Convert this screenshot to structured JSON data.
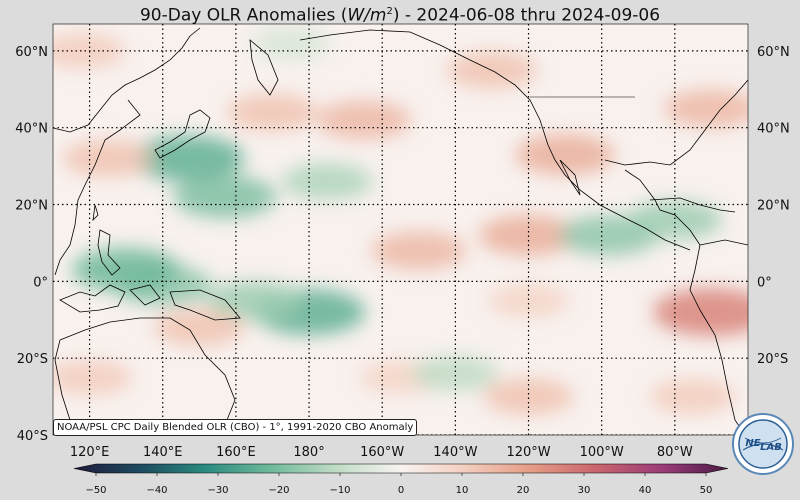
{
  "title": {
    "prefix": "90-Day OLR Anomalies (",
    "unit_main": "W/m",
    "unit_sup": "2",
    "suffix": ") - 2024-06-08 thru 2024-09-06"
  },
  "credit": "NOAA/PSL CPC Daily Blended OLR (CBO) - 1°, 1991-2020 CBO Anomaly",
  "logo_text": {
    "left": "NE",
    "right": "LAB"
  },
  "map": {
    "projection": "equirectangular",
    "lon_range": [
      110,
      300
    ],
    "lat_range": [
      -40,
      67
    ],
    "grid": "dotted",
    "lat_ticks": [
      {
        "lat": 60,
        "label": "60°N"
      },
      {
        "lat": 40,
        "label": "40°N"
      },
      {
        "lat": 20,
        "label": "20°N"
      },
      {
        "lat": 0,
        "label": "0°"
      },
      {
        "lat": -20,
        "label": "20°S"
      },
      {
        "lat": -40,
        "label": "40°S"
      }
    ],
    "lon_ticks": [
      {
        "lon": 120,
        "label": "120°E"
      },
      {
        "lon": 140,
        "label": "140°E"
      },
      {
        "lon": 160,
        "label": "160°E"
      },
      {
        "lon": 180,
        "label": "180°"
      },
      {
        "lon": 200,
        "label": "160°W"
      },
      {
        "lon": 220,
        "label": "140°W"
      },
      {
        "lon": 240,
        "label": "120°W"
      },
      {
        "lon": 260,
        "label": "100°W"
      },
      {
        "lon": 280,
        "label": "80°W"
      }
    ],
    "anomaly_blobs": [
      {
        "lon": 147,
        "lat": 32,
        "value": -22
      },
      {
        "lon": 157,
        "lat": 22,
        "value": -18
      },
      {
        "lon": 185,
        "lat": 26,
        "value": -12
      },
      {
        "lon": 170,
        "lat": 44,
        "value": 12
      },
      {
        "lon": 195,
        "lat": 42,
        "value": 14
      },
      {
        "lon": 125,
        "lat": 32,
        "value": 12
      },
      {
        "lon": 118,
        "lat": 60,
        "value": 10
      },
      {
        "lon": 175,
        "lat": 62,
        "value": -6
      },
      {
        "lon": 210,
        "lat": 8,
        "value": 14
      },
      {
        "lon": 240,
        "lat": 12,
        "value": 16
      },
      {
        "lon": 250,
        "lat": 33,
        "value": 16
      },
      {
        "lon": 230,
        "lat": 55,
        "value": 12
      },
      {
        "lon": 262,
        "lat": 12,
        "value": -16
      },
      {
        "lon": 280,
        "lat": 16,
        "value": -14
      },
      {
        "lon": 140,
        "lat": -1,
        "value": -16
      },
      {
        "lon": 130,
        "lat": 3,
        "value": -20
      },
      {
        "lon": 180,
        "lat": -8,
        "value": -22
      },
      {
        "lon": 165,
        "lat": -5,
        "value": -14
      },
      {
        "lon": 150,
        "lat": -12,
        "value": 12
      },
      {
        "lon": 120,
        "lat": -25,
        "value": 10
      },
      {
        "lon": 205,
        "lat": -25,
        "value": 8
      },
      {
        "lon": 220,
        "lat": -24,
        "value": -10
      },
      {
        "lon": 240,
        "lat": -30,
        "value": 12
      },
      {
        "lon": 290,
        "lat": -8,
        "value": 24
      },
      {
        "lon": 285,
        "lat": -30,
        "value": 10
      },
      {
        "lon": 290,
        "lat": 45,
        "value": 14
      },
      {
        "lon": 240,
        "lat": -5,
        "value": 8
      }
    ]
  },
  "colorbar": {
    "range": [
      -50,
      50
    ],
    "ticks": [
      {
        "value": -50,
        "label": "−50"
      },
      {
        "value": -40,
        "label": "−40"
      },
      {
        "value": -30,
        "label": "−30"
      },
      {
        "value": -20,
        "label": "−20"
      },
      {
        "value": -10,
        "label": "−10"
      },
      {
        "value": 0,
        "label": "0"
      },
      {
        "value": 10,
        "label": "10"
      },
      {
        "value": 20,
        "label": "20"
      },
      {
        "value": 30,
        "label": "30"
      },
      {
        "value": 40,
        "label": "40"
      },
      {
        "value": 50,
        "label": "50"
      }
    ],
    "colors": [
      "#1e1a3a",
      "#1d4a5f",
      "#2a8b80",
      "#6fb99a",
      "#bfdcc4",
      "#f8f3f1",
      "#f3cdbd",
      "#e49b85",
      "#c9656d",
      "#9b3b78",
      "#4b1a45"
    ]
  }
}
